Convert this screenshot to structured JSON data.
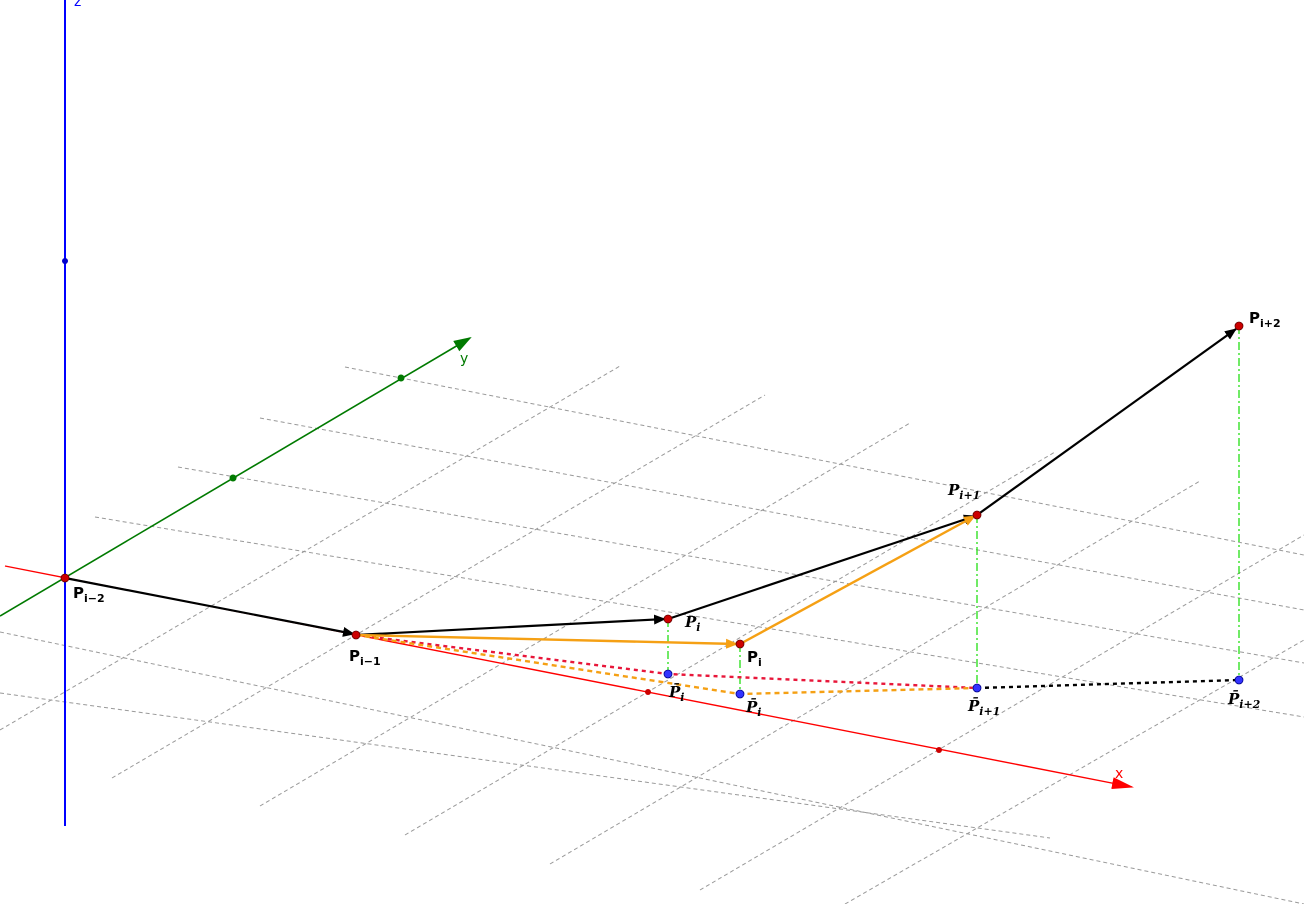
{
  "axes": {
    "x_label": "x",
    "y_label": "y",
    "z_label": "z",
    "x_color": "#ff0000",
    "y_color": "#007a00",
    "z_color": "#0000ff"
  },
  "colors": {
    "vector": "#000000",
    "orange": "#f5a014",
    "red_dotted": "#e8173a",
    "green_dashdot": "#11dd00",
    "point_red": "#cc0000",
    "point_blue": "#3333ff",
    "grid": "#999999"
  },
  "points": {
    "p_im2": {
      "base": "P",
      "sub": "i−2",
      "style": "bold"
    },
    "p_im1": {
      "base": "P",
      "sub": "i−1",
      "style": "bold"
    },
    "p_i_old": {
      "base": "P",
      "sub": "i",
      "style": "italic"
    },
    "p_i_new": {
      "base": "P",
      "sub": "i",
      "style": "bold"
    },
    "p_ip1": {
      "base": "P",
      "sub": "i+1",
      "style": "italic"
    },
    "p_ip2": {
      "base": "P",
      "sub": "i+2",
      "style": "bold"
    },
    "pbar_i_old": {
      "base": "P̄",
      "sub": "i",
      "style": "italic"
    },
    "pbar_i_new": {
      "base": "P̄",
      "sub": "i",
      "style": "italic"
    },
    "pbar_ip1": {
      "base": "P̄",
      "sub": "i+1",
      "style": "italic"
    },
    "pbar_ip2": {
      "base": "P̄",
      "sub": "i+2",
      "style": "italic"
    }
  }
}
